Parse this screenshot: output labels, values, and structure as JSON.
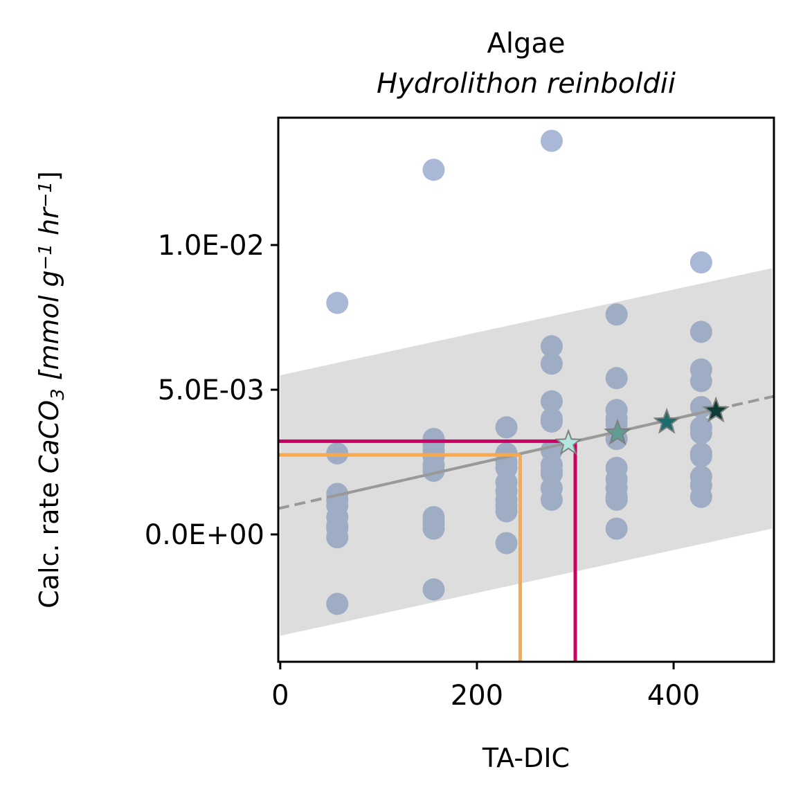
{
  "chart_data": {
    "type": "scatter",
    "title": "Algae",
    "subtitle": "Hydrolithon reinboldii",
    "xlabel": "TA-DIC",
    "ylabel_parts": [
      "Calc. rate ",
      "CaCO",
      "3",
      " [mmol g",
      "−1",
      " hr",
      "−1",
      "]"
    ],
    "xlim": [
      -2,
      502
    ],
    "ylim": [
      -0.0044,
      0.0144
    ],
    "x_ticks": [
      0,
      200,
      400
    ],
    "x_tick_labels": [
      "0",
      "200",
      "400"
    ],
    "y_ticks": [
      0,
      0.005,
      0.01
    ],
    "y_tick_labels": [
      "0.0E+00",
      "5.0E-03",
      "1.0E-02"
    ],
    "grid": false,
    "colors": {
      "points": "#a9b8d6",
      "points_in_band": "#9eacc4",
      "band": "#dddddd",
      "regression": "#999999",
      "orange": "#f9a94b",
      "magenta": "#cc0066",
      "star_colors": [
        "#b2e6df",
        "#5f9c93",
        "#1c6d6b",
        "#0d3b36"
      ]
    },
    "scatter_points": [
      [
        58,
        0.008
      ],
      [
        58,
        0.0028
      ],
      [
        58,
        0.0014
      ],
      [
        58,
        0.0012
      ],
      [
        58,
        0.001
      ],
      [
        58,
        0.0006
      ],
      [
        58,
        0.0003
      ],
      [
        58,
        0.0002
      ],
      [
        58,
        -0.0001
      ],
      [
        58,
        -0.0024
      ],
      [
        156,
        0.0126
      ],
      [
        156,
        0.0033
      ],
      [
        156,
        0.0031
      ],
      [
        156,
        0.0029
      ],
      [
        156,
        0.0027
      ],
      [
        156,
        0.0024
      ],
      [
        156,
        0.0022
      ],
      [
        156,
        0.0006
      ],
      [
        156,
        0.0004
      ],
      [
        156,
        0.0002
      ],
      [
        156,
        -0.0019
      ],
      [
        230,
        0.0037
      ],
      [
        230,
        0.0028
      ],
      [
        230,
        0.0025
      ],
      [
        230,
        0.0023
      ],
      [
        230,
        0.0018
      ],
      [
        230,
        0.0015
      ],
      [
        230,
        0.0012
      ],
      [
        230,
        0.001
      ],
      [
        230,
        0.0008
      ],
      [
        230,
        -0.0003
      ],
      [
        276,
        0.0136
      ],
      [
        276,
        0.0065
      ],
      [
        276,
        0.0059
      ],
      [
        276,
        0.0046
      ],
      [
        276,
        0.004
      ],
      [
        276,
        0.0039
      ],
      [
        276,
        0.0029
      ],
      [
        276,
        0.0024
      ],
      [
        276,
        0.0022
      ],
      [
        276,
        0.0021
      ],
      [
        276,
        0.0016
      ],
      [
        276,
        0.0012
      ],
      [
        342,
        0.0076
      ],
      [
        342,
        0.0054
      ],
      [
        342,
        0.0043
      ],
      [
        342,
        0.004
      ],
      [
        342,
        0.0038
      ],
      [
        342,
        0.0033
      ],
      [
        342,
        0.0023
      ],
      [
        342,
        0.0019
      ],
      [
        342,
        0.0016
      ],
      [
        342,
        0.0013
      ],
      [
        342,
        0.0012
      ],
      [
        342,
        0.0002
      ],
      [
        428,
        0.0094
      ],
      [
        428,
        0.007
      ],
      [
        428,
        0.0057
      ],
      [
        428,
        0.0053
      ],
      [
        428,
        0.0044
      ],
      [
        428,
        0.0037
      ],
      [
        428,
        0.0035
      ],
      [
        428,
        0.0028
      ],
      [
        428,
        0.0027
      ],
      [
        428,
        0.002
      ],
      [
        428,
        0.0017
      ],
      [
        428,
        0.0013
      ]
    ],
    "regression": {
      "slope": 7.7e-06,
      "intercept": 0.00091,
      "solid_from": 58,
      "solid_to": 442
    },
    "prediction_band": {
      "lower": [
        [
          0,
          -0.0035
        ],
        [
          500,
          0.0002
        ]
      ],
      "upper": [
        [
          0,
          0.0055
        ],
        [
          500,
          0.0092
        ]
      ]
    },
    "reference_lines": [
      {
        "color_key": "orange",
        "x": 244,
        "y": 0.00275
      },
      {
        "color_key": "magenta",
        "x": 300,
        "y": 0.00322
      }
    ],
    "star_points": [
      {
        "x": 293,
        "y": 0.00315,
        "color_index": 0
      },
      {
        "x": 343,
        "y": 0.0035,
        "color_index": 1
      },
      {
        "x": 393,
        "y": 0.00388,
        "color_index": 2
      },
      {
        "x": 443,
        "y": 0.00427,
        "color_index": 3
      }
    ]
  }
}
